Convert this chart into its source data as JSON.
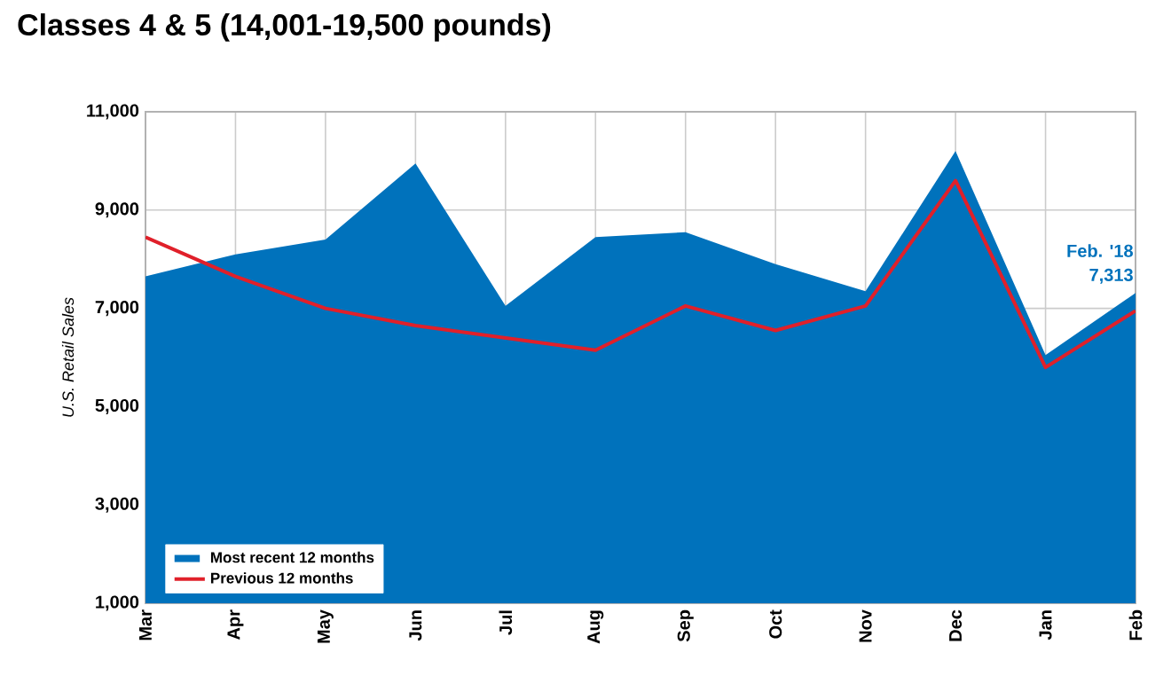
{
  "chart_data": {
    "type": "area",
    "title": "Classes 4 & 5 (14,001-19,500 pounds)",
    "ylabel": "U.S. Retail Sales",
    "categories": [
      "Mar",
      "Apr",
      "May",
      "Jun",
      "Jul",
      "Aug",
      "Sep",
      "Oct",
      "Nov",
      "Dec",
      "Jan",
      "Feb"
    ],
    "series": [
      {
        "name": "Most recent 12 months",
        "color": "#0072bc",
        "values": [
          7650,
          8100,
          8400,
          9950,
          7050,
          8450,
          8550,
          7900,
          7350,
          10200,
          6050,
          7313
        ],
        "value_labels": [
          null,
          null,
          null,
          null,
          null,
          null,
          null,
          null,
          null,
          null,
          null,
          "7,313"
        ]
      },
      {
        "name": "Previous 12 months",
        "type": "line",
        "color": "#e0202a",
        "values": [
          8450,
          7650,
          7000,
          6650,
          6400,
          6150,
          7050,
          6550,
          7050,
          9600,
          5800,
          6950
        ]
      }
    ],
    "annotations": [
      {
        "text": "Feb. '18",
        "x": "Feb",
        "y": 7313
      }
    ],
    "ylim": [
      1000,
      11000
    ],
    "yticks": [
      {
        "value": 1000,
        "label": "1,000"
      },
      {
        "value": 3000,
        "label": "3,000"
      },
      {
        "value": 5000,
        "label": "5,000"
      },
      {
        "value": 7000,
        "label": "7,000"
      },
      {
        "value": 9000,
        "label": "9,000"
      },
      {
        "value": 11000,
        "label": "11,000"
      }
    ],
    "grid": true,
    "legend": "bottom left"
  }
}
